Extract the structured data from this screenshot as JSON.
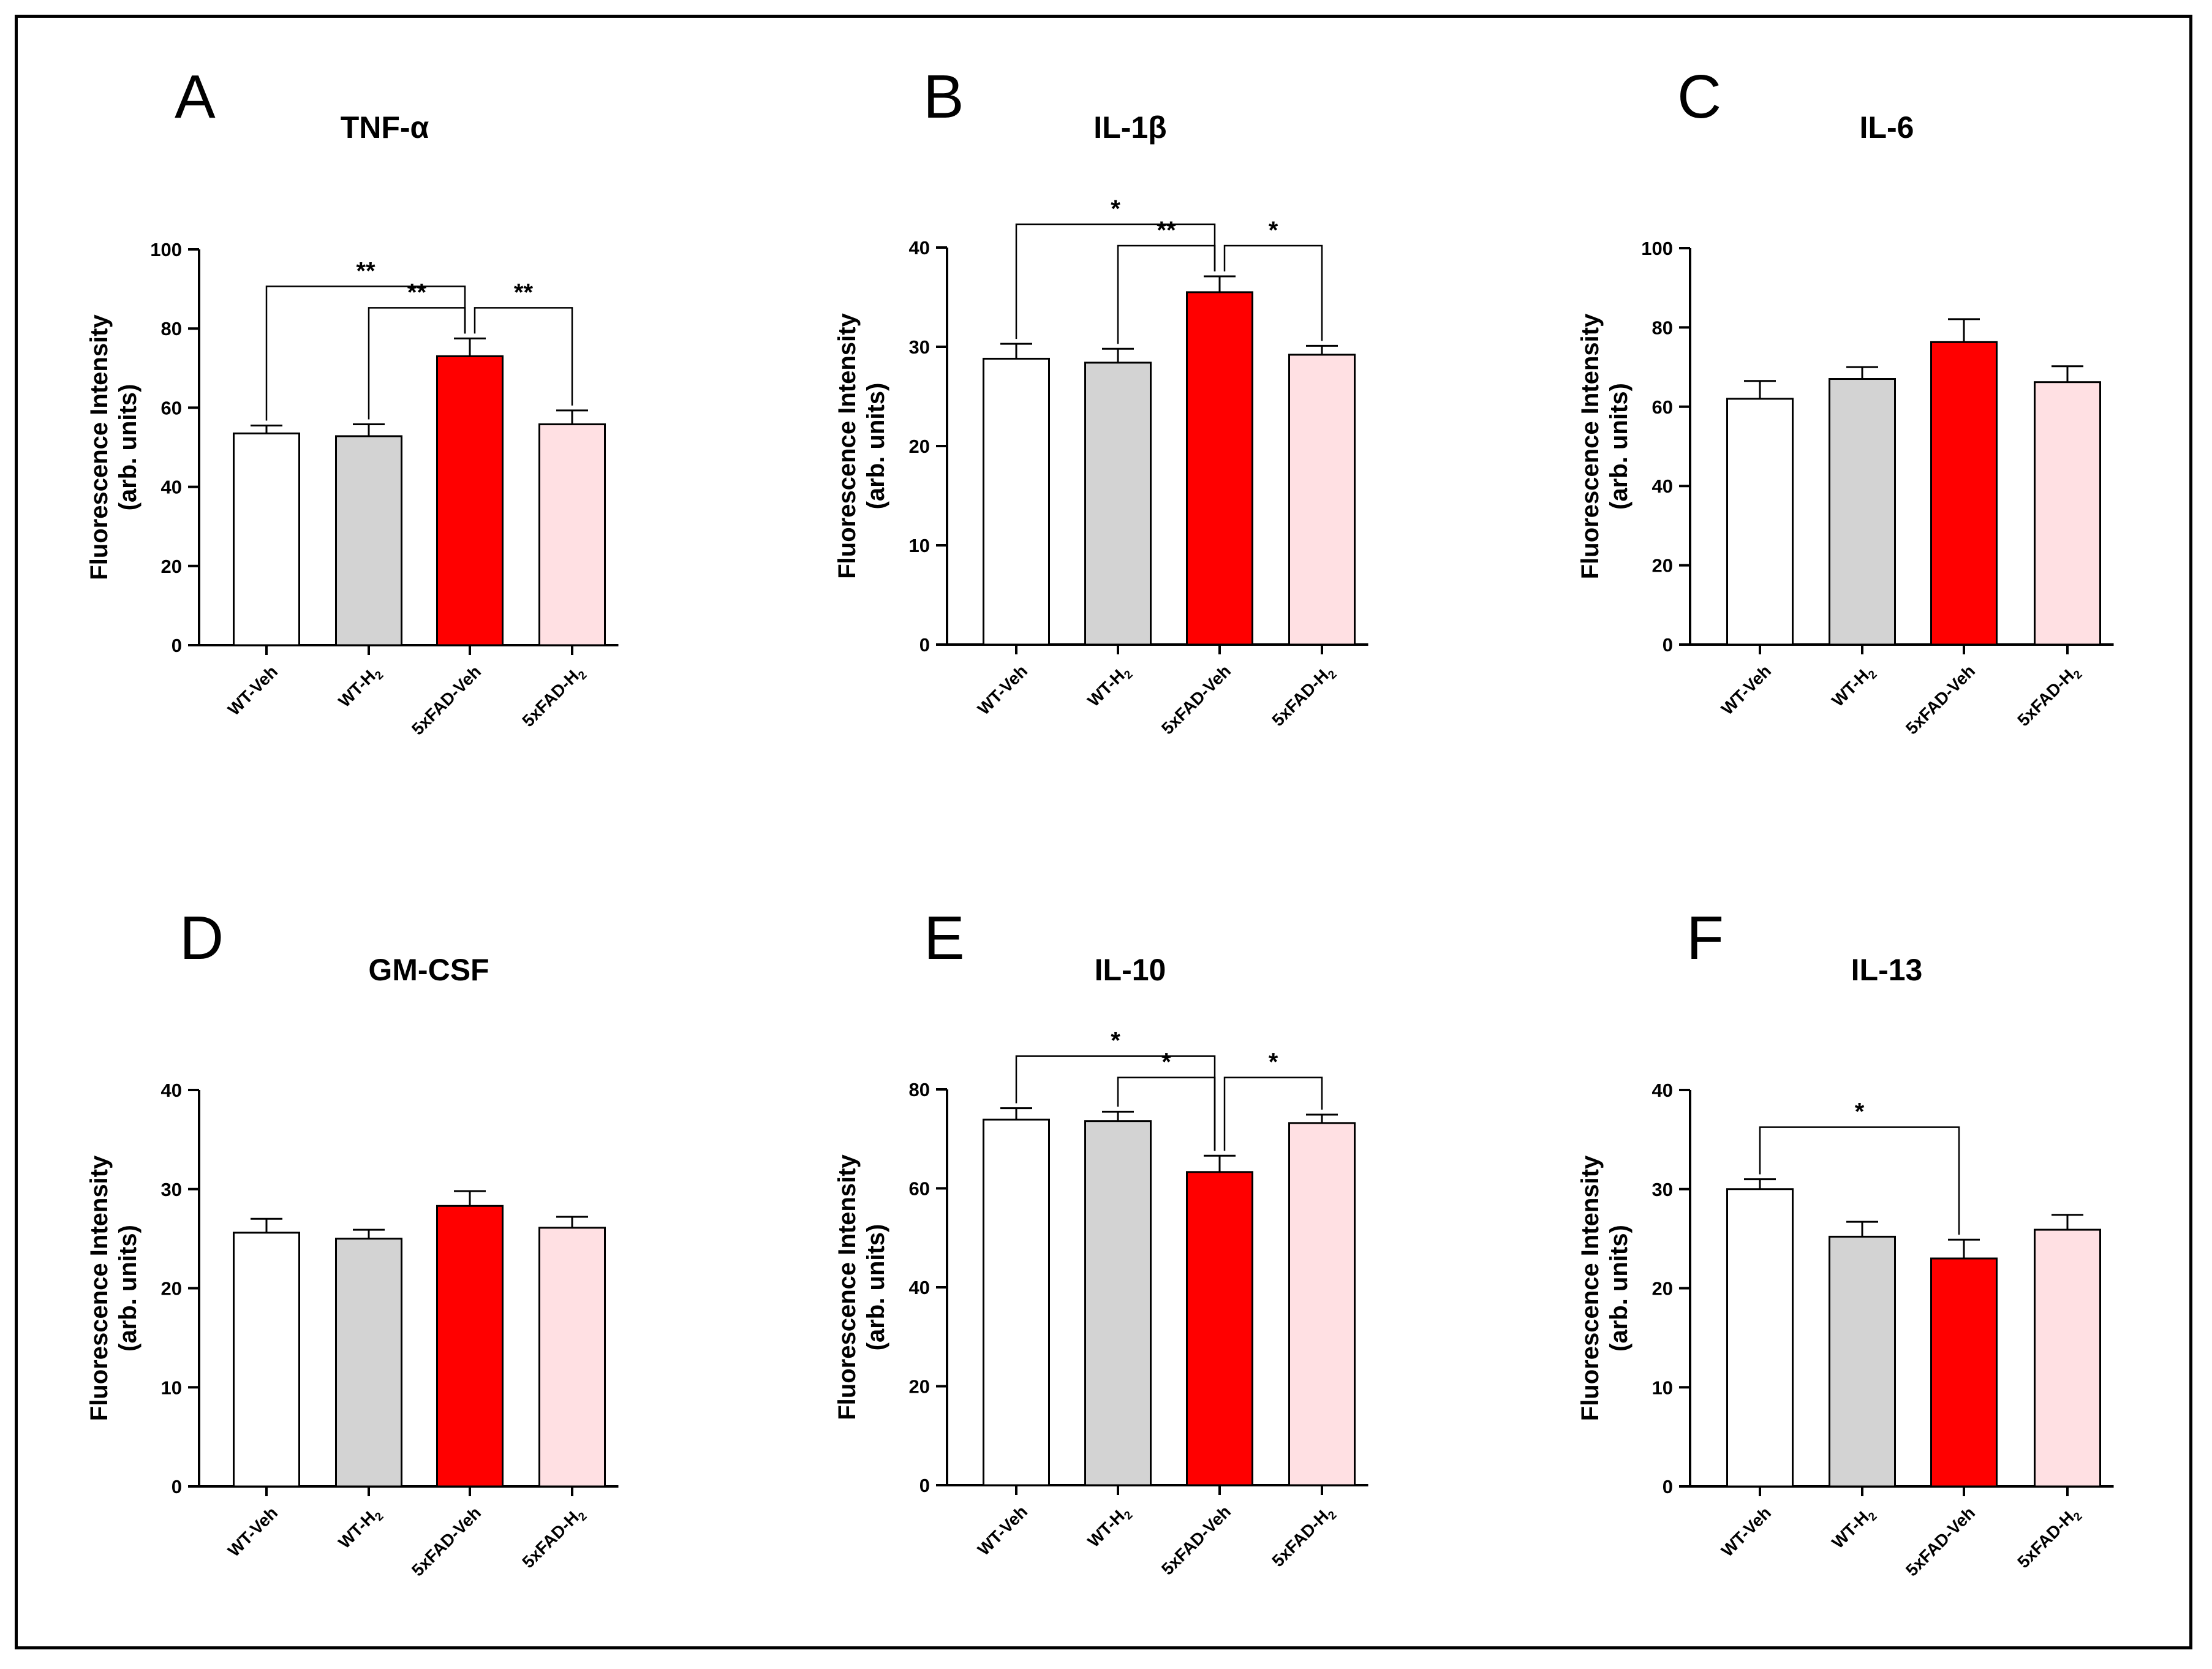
{
  "figure": {
    "category_labels": [
      {
        "main": "WT-Veh",
        "sub": ""
      },
      {
        "main": "WT-H",
        "sub": "2"
      },
      {
        "main": "5xFAD-Veh",
        "sub": ""
      },
      {
        "main": "5xFAD-H",
        "sub": "2"
      }
    ],
    "ylabel_line1": "Fluorescence Intensity",
    "ylabel_line2": "(arb. units)",
    "bar_colors": [
      "#ffffff",
      "#d3d3d3",
      "#ff0000",
      "#ffe0e3"
    ],
    "stroke_color": "#000000"
  },
  "chart_data": [
    {
      "panel": "A",
      "type": "bar",
      "title": "TNF-α",
      "categories": [
        "WT-Veh",
        "WT-H2",
        "5xFAD-Veh",
        "5xFAD-H2"
      ],
      "values": [
        53.5,
        52.8,
        73.0,
        55.8
      ],
      "errors": [
        2.0,
        3.0,
        4.5,
        3.5
      ],
      "ylim": [
        0,
        100
      ],
      "yticks": [
        0,
        20,
        40,
        60,
        80,
        100
      ],
      "significance": [
        {
          "from": 0,
          "to": 2,
          "label": "**"
        },
        {
          "from": 1,
          "to": 2,
          "label": "**"
        },
        {
          "from": 2,
          "to": 3,
          "label": "**"
        }
      ]
    },
    {
      "panel": "B",
      "type": "bar",
      "title": "IL-1β",
      "categories": [
        "WT-Veh",
        "WT-H2",
        "5xFAD-Veh",
        "5xFAD-H2"
      ],
      "values": [
        28.8,
        28.4,
        35.5,
        29.2
      ],
      "errors": [
        1.5,
        1.4,
        1.6,
        0.9
      ],
      "ylim": [
        0,
        40
      ],
      "yticks": [
        0,
        10,
        20,
        30,
        40
      ],
      "significance": [
        {
          "from": 0,
          "to": 2,
          "label": "*"
        },
        {
          "from": 1,
          "to": 2,
          "label": "**"
        },
        {
          "from": 2,
          "to": 3,
          "label": "*"
        }
      ]
    },
    {
      "panel": "C",
      "type": "bar",
      "title": "IL-6",
      "categories": [
        "WT-Veh",
        "WT-H2",
        "5xFAD-Veh",
        "5xFAD-H2"
      ],
      "values": [
        62.0,
        67.0,
        76.3,
        66.2
      ],
      "errors": [
        4.5,
        3.0,
        5.8,
        4.0
      ],
      "ylim": [
        0,
        100
      ],
      "yticks": [
        0,
        20,
        40,
        60,
        80,
        100
      ],
      "significance": []
    },
    {
      "panel": "D",
      "type": "bar",
      "title": "GM-CSF",
      "categories": [
        "WT-Veh",
        "WT-H2",
        "5xFAD-Veh",
        "5xFAD-H2"
      ],
      "values": [
        25.6,
        25.0,
        28.3,
        26.1
      ],
      "errors": [
        1.4,
        0.9,
        1.5,
        1.1
      ],
      "ylim": [
        0,
        40
      ],
      "yticks": [
        0,
        10,
        20,
        30,
        40
      ],
      "significance": []
    },
    {
      "panel": "E",
      "type": "bar",
      "title": "IL-10",
      "categories": [
        "WT-Veh",
        "WT-H2",
        "5xFAD-Veh",
        "5xFAD-H2"
      ],
      "values": [
        73.9,
        73.6,
        63.3,
        73.2
      ],
      "errors": [
        2.3,
        1.9,
        3.3,
        1.7
      ],
      "ylim": [
        0,
        80
      ],
      "yticks": [
        0,
        20,
        40,
        60,
        80
      ],
      "significance": [
        {
          "from": 0,
          "to": 2,
          "label": "*"
        },
        {
          "from": 1,
          "to": 2,
          "label": "*"
        },
        {
          "from": 2,
          "to": 3,
          "label": "*"
        }
      ]
    },
    {
      "panel": "F",
      "type": "bar",
      "title": "IL-13",
      "categories": [
        "WT-Veh",
        "WT-H2",
        "5xFAD-Veh",
        "5xFAD-H2"
      ],
      "values": [
        30.0,
        25.2,
        23.0,
        25.9
      ],
      "errors": [
        1.0,
        1.5,
        1.9,
        1.5
      ],
      "ylim": [
        0,
        40
      ],
      "yticks": [
        0,
        10,
        20,
        30,
        40
      ],
      "significance": [
        {
          "from": 0,
          "to": 2,
          "label": "*"
        }
      ]
    }
  ]
}
